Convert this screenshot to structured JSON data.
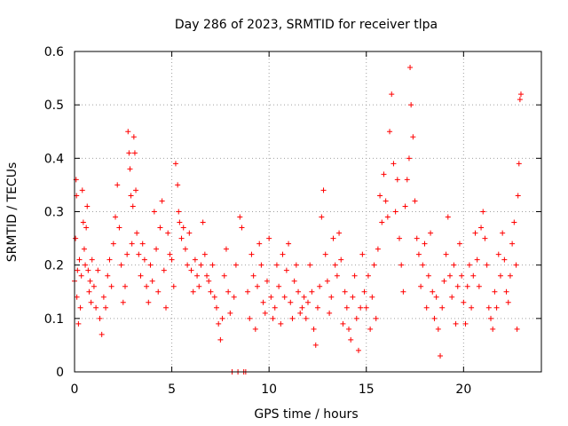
{
  "chart_data": {
    "type": "scatter",
    "title": "Day 286 of 2023, SRMTID for receiver tlpa",
    "xlabel": "GPS time / hours",
    "ylabel": "SRMTID / TECUs",
    "xlim": [
      0,
      24
    ],
    "ylim": [
      0,
      0.6
    ],
    "x_ticks": [
      0,
      5,
      10,
      15,
      20
    ],
    "x_tick_labels": [
      "0",
      "5",
      "10",
      "15",
      "20"
    ],
    "y_ticks": [
      0,
      0.1,
      0.2,
      0.3,
      0.4,
      0.5,
      0.6
    ],
    "y_tick_labels": [
      "0",
      "0.1",
      "0.2",
      "0.3",
      "0.4",
      "0.5",
      "0.6"
    ],
    "grid": true,
    "marker": "+",
    "color": "#ff0000",
    "series": [
      {
        "name": "tlpa",
        "points": [
          [
            0.0,
            0.17
          ],
          [
            0.05,
            0.25
          ],
          [
            0.08,
            0.36
          ],
          [
            0.1,
            0.33
          ],
          [
            0.12,
            0.14
          ],
          [
            0.15,
            0.19
          ],
          [
            0.2,
            0.09
          ],
          [
            0.25,
            0.21
          ],
          [
            0.3,
            0.12
          ],
          [
            0.35,
            0.18
          ],
          [
            0.4,
            0.34
          ],
          [
            0.45,
            0.28
          ],
          [
            0.5,
            0.23
          ],
          [
            0.55,
            0.2
          ],
          [
            0.6,
            0.27
          ],
          [
            0.65,
            0.31
          ],
          [
            0.7,
            0.19
          ],
          [
            0.75,
            0.15
          ],
          [
            0.8,
            0.17
          ],
          [
            0.85,
            0.13
          ],
          [
            0.9,
            0.21
          ],
          [
            1.0,
            0.16
          ],
          [
            1.1,
            0.12
          ],
          [
            1.2,
            0.19
          ],
          [
            1.3,
            0.1
          ],
          [
            1.4,
            0.07
          ],
          [
            1.5,
            0.14
          ],
          [
            1.6,
            0.12
          ],
          [
            1.7,
            0.18
          ],
          [
            1.8,
            0.21
          ],
          [
            1.9,
            0.16
          ],
          [
            2.0,
            0.24
          ],
          [
            2.1,
            0.29
          ],
          [
            2.2,
            0.35
          ],
          [
            2.3,
            0.27
          ],
          [
            2.4,
            0.2
          ],
          [
            2.5,
            0.13
          ],
          [
            2.6,
            0.16
          ],
          [
            2.7,
            0.22
          ],
          [
            2.75,
            0.45
          ],
          [
            2.8,
            0.41
          ],
          [
            2.85,
            0.38
          ],
          [
            2.9,
            0.33
          ],
          [
            2.95,
            0.24
          ],
          [
            3.0,
            0.31
          ],
          [
            3.05,
            0.44
          ],
          [
            3.1,
            0.41
          ],
          [
            3.15,
            0.34
          ],
          [
            3.2,
            0.26
          ],
          [
            3.3,
            0.22
          ],
          [
            3.4,
            0.18
          ],
          [
            3.5,
            0.24
          ],
          [
            3.6,
            0.21
          ],
          [
            3.7,
            0.16
          ],
          [
            3.8,
            0.13
          ],
          [
            3.9,
            0.2
          ],
          [
            4.0,
            0.17
          ],
          [
            4.1,
            0.3
          ],
          [
            4.2,
            0.23
          ],
          [
            4.3,
            0.15
          ],
          [
            4.4,
            0.27
          ],
          [
            4.5,
            0.32
          ],
          [
            4.6,
            0.19
          ],
          [
            4.7,
            0.12
          ],
          [
            4.8,
            0.26
          ],
          [
            4.9,
            0.22
          ],
          [
            5.0,
            0.21
          ],
          [
            5.1,
            0.16
          ],
          [
            5.2,
            0.39
          ],
          [
            5.3,
            0.35
          ],
          [
            5.35,
            0.3
          ],
          [
            5.4,
            0.28
          ],
          [
            5.5,
            0.25
          ],
          [
            5.6,
            0.27
          ],
          [
            5.7,
            0.23
          ],
          [
            5.8,
            0.2
          ],
          [
            5.9,
            0.26
          ],
          [
            6.0,
            0.19
          ],
          [
            6.1,
            0.15
          ],
          [
            6.2,
            0.21
          ],
          [
            6.3,
            0.18
          ],
          [
            6.4,
            0.16
          ],
          [
            6.5,
            0.2
          ],
          [
            6.6,
            0.28
          ],
          [
            6.7,
            0.22
          ],
          [
            6.8,
            0.18
          ],
          [
            6.9,
            0.17
          ],
          [
            7.0,
            0.15
          ],
          [
            7.1,
            0.2
          ],
          [
            7.2,
            0.14
          ],
          [
            7.3,
            0.12
          ],
          [
            7.4,
            0.09
          ],
          [
            7.5,
            0.06
          ],
          [
            7.6,
            0.1
          ],
          [
            7.7,
            0.18
          ],
          [
            7.8,
            0.23
          ],
          [
            7.9,
            0.15
          ],
          [
            8.0,
            0.11
          ],
          [
            8.1,
            0.0
          ],
          [
            8.2,
            0.14
          ],
          [
            8.3,
            0.2
          ],
          [
            8.4,
            0.0
          ],
          [
            8.5,
            0.29
          ],
          [
            8.6,
            0.27
          ],
          [
            8.7,
            0.0
          ],
          [
            8.8,
            0.0
          ],
          [
            8.9,
            0.15
          ],
          [
            9.0,
            0.1
          ],
          [
            9.1,
            0.22
          ],
          [
            9.2,
            0.18
          ],
          [
            9.3,
            0.08
          ],
          [
            9.4,
            0.16
          ],
          [
            9.5,
            0.24
          ],
          [
            9.6,
            0.2
          ],
          [
            9.7,
            0.13
          ],
          [
            9.8,
            0.11
          ],
          [
            9.9,
            0.17
          ],
          [
            10.0,
            0.25
          ],
          [
            10.1,
            0.14
          ],
          [
            10.2,
            0.1
          ],
          [
            10.3,
            0.12
          ],
          [
            10.4,
            0.2
          ],
          [
            10.5,
            0.16
          ],
          [
            10.6,
            0.09
          ],
          [
            10.7,
            0.22
          ],
          [
            10.8,
            0.14
          ],
          [
            10.9,
            0.19
          ],
          [
            11.0,
            0.24
          ],
          [
            11.1,
            0.13
          ],
          [
            11.2,
            0.1
          ],
          [
            11.3,
            0.17
          ],
          [
            11.4,
            0.2
          ],
          [
            11.5,
            0.15
          ],
          [
            11.6,
            0.11
          ],
          [
            11.7,
            0.12
          ],
          [
            11.8,
            0.14
          ],
          [
            11.9,
            0.1
          ],
          [
            12.0,
            0.13
          ],
          [
            12.1,
            0.2
          ],
          [
            12.2,
            0.15
          ],
          [
            12.3,
            0.08
          ],
          [
            12.4,
            0.05
          ],
          [
            12.5,
            0.12
          ],
          [
            12.6,
            0.16
          ],
          [
            12.7,
            0.29
          ],
          [
            12.8,
            0.34
          ],
          [
            12.9,
            0.22
          ],
          [
            13.0,
            0.17
          ],
          [
            13.1,
            0.11
          ],
          [
            13.2,
            0.14
          ],
          [
            13.3,
            0.25
          ],
          [
            13.4,
            0.2
          ],
          [
            13.5,
            0.18
          ],
          [
            13.6,
            0.26
          ],
          [
            13.7,
            0.21
          ],
          [
            13.8,
            0.09
          ],
          [
            13.9,
            0.15
          ],
          [
            14.0,
            0.12
          ],
          [
            14.1,
            0.08
          ],
          [
            14.2,
            0.06
          ],
          [
            14.3,
            0.14
          ],
          [
            14.4,
            0.18
          ],
          [
            14.5,
            0.1
          ],
          [
            14.6,
            0.04
          ],
          [
            14.7,
            0.12
          ],
          [
            14.8,
            0.22
          ],
          [
            14.9,
            0.15
          ],
          [
            15.0,
            0.12
          ],
          [
            15.1,
            0.18
          ],
          [
            15.2,
            0.08
          ],
          [
            15.3,
            0.14
          ],
          [
            15.4,
            0.2
          ],
          [
            15.5,
            0.1
          ],
          [
            15.6,
            0.23
          ],
          [
            15.7,
            0.33
          ],
          [
            15.8,
            0.28
          ],
          [
            15.9,
            0.37
          ],
          [
            16.0,
            0.32
          ],
          [
            16.1,
            0.29
          ],
          [
            16.2,
            0.45
          ],
          [
            16.3,
            0.52
          ],
          [
            16.4,
            0.39
          ],
          [
            16.5,
            0.3
          ],
          [
            16.6,
            0.36
          ],
          [
            16.7,
            0.25
          ],
          [
            16.8,
            0.2
          ],
          [
            16.9,
            0.15
          ],
          [
            17.0,
            0.31
          ],
          [
            17.1,
            0.36
          ],
          [
            17.2,
            0.4
          ],
          [
            17.25,
            0.57
          ],
          [
            17.3,
            0.5
          ],
          [
            17.4,
            0.44
          ],
          [
            17.5,
            0.32
          ],
          [
            17.6,
            0.25
          ],
          [
            17.7,
            0.22
          ],
          [
            17.8,
            0.16
          ],
          [
            17.9,
            0.2
          ],
          [
            18.0,
            0.24
          ],
          [
            18.1,
            0.12
          ],
          [
            18.2,
            0.18
          ],
          [
            18.3,
            0.26
          ],
          [
            18.4,
            0.15
          ],
          [
            18.5,
            0.1
          ],
          [
            18.6,
            0.14
          ],
          [
            18.7,
            0.08
          ],
          [
            18.8,
            0.03
          ],
          [
            18.9,
            0.12
          ],
          [
            19.0,
            0.17
          ],
          [
            19.1,
            0.22
          ],
          [
            19.2,
            0.29
          ],
          [
            19.3,
            0.18
          ],
          [
            19.4,
            0.14
          ],
          [
            19.5,
            0.2
          ],
          [
            19.6,
            0.09
          ],
          [
            19.7,
            0.16
          ],
          [
            19.8,
            0.24
          ],
          [
            19.9,
            0.18
          ],
          [
            20.0,
            0.13
          ],
          [
            20.1,
            0.09
          ],
          [
            20.2,
            0.16
          ],
          [
            20.3,
            0.2
          ],
          [
            20.4,
            0.12
          ],
          [
            20.5,
            0.18
          ],
          [
            20.6,
            0.26
          ],
          [
            20.7,
            0.21
          ],
          [
            20.8,
            0.16
          ],
          [
            20.9,
            0.27
          ],
          [
            21.0,
            0.3
          ],
          [
            21.1,
            0.25
          ],
          [
            21.2,
            0.2
          ],
          [
            21.3,
            0.12
          ],
          [
            21.4,
            0.1
          ],
          [
            21.5,
            0.08
          ],
          [
            21.6,
            0.15
          ],
          [
            21.7,
            0.12
          ],
          [
            21.8,
            0.22
          ],
          [
            21.9,
            0.18
          ],
          [
            22.0,
            0.26
          ],
          [
            22.1,
            0.21
          ],
          [
            22.2,
            0.15
          ],
          [
            22.3,
            0.13
          ],
          [
            22.4,
            0.18
          ],
          [
            22.5,
            0.24
          ],
          [
            22.6,
            0.28
          ],
          [
            22.7,
            0.2
          ],
          [
            22.75,
            0.08
          ],
          [
            22.8,
            0.33
          ],
          [
            22.85,
            0.39
          ],
          [
            22.9,
            0.51
          ],
          [
            22.95,
            0.52
          ]
        ]
      }
    ]
  }
}
